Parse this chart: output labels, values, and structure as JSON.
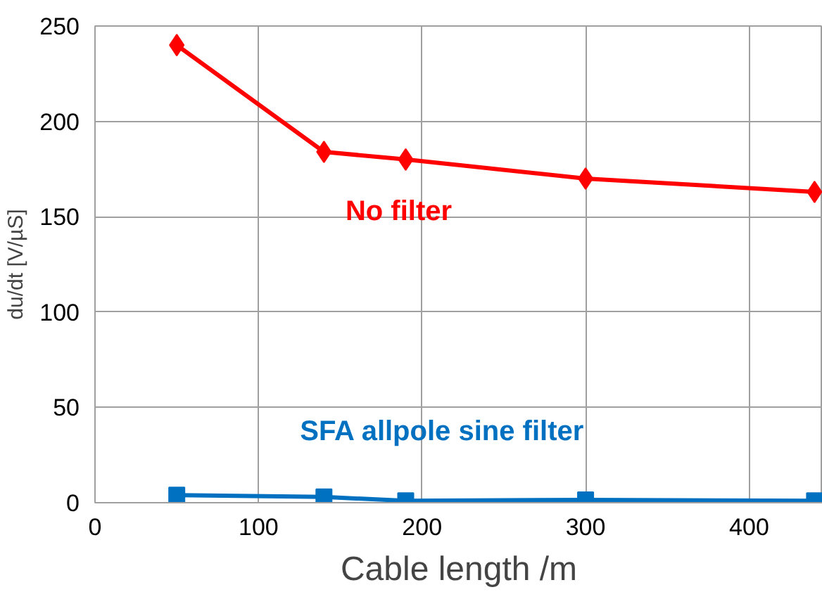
{
  "chart_data": {
    "type": "line",
    "xlabel": "Cable length /m",
    "ylabel": "du/dt [V/µS]",
    "x": [
      50,
      140,
      190,
      300,
      440
    ],
    "xlim": [
      0,
      445
    ],
    "xticks": [
      0,
      100,
      200,
      300,
      400
    ],
    "ylim": [
      0,
      250
    ],
    "yticks": [
      0,
      50,
      100,
      150,
      200,
      250
    ],
    "grid": true,
    "line_style": "solid",
    "series": [
      {
        "name": "No filter",
        "color": "#ff0000",
        "marker": "diamond",
        "values": [
          240,
          184,
          180,
          170,
          163
        ]
      },
      {
        "name": "SFA allpole sine filter",
        "color": "#0070c0",
        "marker": "square",
        "values": [
          4,
          3,
          1,
          1.5,
          1
        ]
      }
    ]
  }
}
